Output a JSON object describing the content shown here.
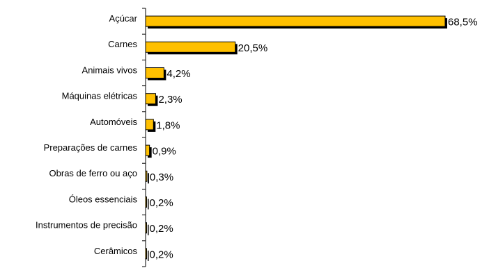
{
  "chart_data": {
    "type": "bar",
    "orientation": "horizontal",
    "categories": [
      "Açúcar",
      "Carnes",
      "Animais vivos",
      "Máquinas elétricas",
      "Automóveis",
      "Preparações de carnes",
      "Obras de ferro ou aço",
      "Óleos essenciais",
      "Instrumentos de precisão",
      "Cerâmicos"
    ],
    "values": [
      68.5,
      20.5,
      4.2,
      2.3,
      1.8,
      0.9,
      0.3,
      0.2,
      0.2,
      0.2
    ],
    "value_labels": [
      "68,5%",
      "20,5%",
      "4,2%",
      "2,3%",
      "1,8%",
      "0,9%",
      "0,3%",
      "0,2%",
      "0,2%",
      "0,2%"
    ],
    "xlim": [
      0,
      68.5
    ],
    "grid": false,
    "legend": "none",
    "colors": {
      "bar": "#FFC000",
      "shadow": "#000000",
      "axis": "#000000"
    }
  }
}
